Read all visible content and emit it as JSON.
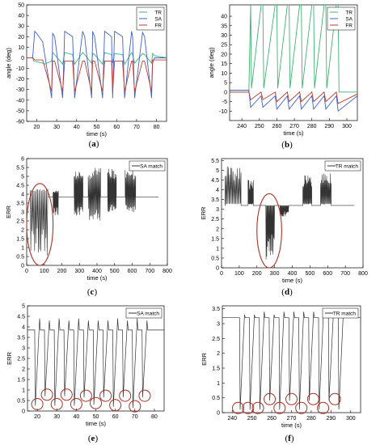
{
  "chart_data": [
    {
      "id": "a",
      "panel_label": "(a)",
      "type": "line",
      "xlabel": "time (s)",
      "ylabel": "angle (deg)",
      "xlim": [
        15,
        85
      ],
      "ylim": [
        -60,
        50
      ],
      "xticks": [
        20,
        30,
        40,
        50,
        60,
        70,
        80
      ],
      "yticks": [
        -60,
        -50,
        -40,
        -30,
        -20,
        -10,
        0,
        10,
        20,
        30,
        40,
        50
      ],
      "legend": "top-right",
      "grid": false,
      "legend_entries": [
        "TR",
        "SA",
        "FR"
      ],
      "series": [
        {
          "name": "TR",
          "color": "#3cb371",
          "x": [
            15,
            18,
            18.5,
            23,
            24,
            27.5,
            28,
            29,
            33,
            34,
            38,
            39,
            43,
            44,
            47.5,
            48,
            49,
            53,
            54,
            57.5,
            58,
            59,
            63,
            64,
            67.5,
            68,
            69,
            73,
            74,
            77.5,
            78,
            79,
            85
          ],
          "y": [
            0,
            0,
            -3,
            -5,
            -6,
            -3,
            5,
            3,
            -6,
            5,
            3,
            -6,
            5,
            3,
            -5,
            4,
            3,
            -6,
            5,
            3,
            -5,
            4,
            3,
            -6,
            5,
            3,
            -5,
            4,
            3,
            -5,
            4,
            2,
            0
          ]
        },
        {
          "name": "SA",
          "color": "#4060d0",
          "x": [
            15,
            18,
            19,
            20,
            23,
            27.5,
            28,
            29,
            33,
            34,
            38,
            39,
            43,
            44,
            47.5,
            48,
            49,
            53,
            54,
            57.5,
            58,
            59,
            63,
            64,
            67.5,
            68,
            69,
            73,
            74,
            77.5,
            78,
            79,
            85
          ],
          "y": [
            0,
            0,
            25,
            23,
            15,
            -38,
            23,
            20,
            -38,
            25,
            20,
            -38,
            25,
            20,
            -38,
            25,
            20,
            -38,
            25,
            20,
            -38,
            25,
            20,
            -38,
            25,
            20,
            -38,
            24,
            20,
            -38,
            -5,
            0,
            0
          ]
        },
        {
          "name": "FR",
          "color": "#c0392b",
          "x": [
            15,
            18,
            19,
            23,
            27.5,
            28,
            29,
            33,
            34,
            38,
            39,
            43,
            44,
            47.5,
            48,
            49,
            53,
            54,
            57.5,
            58,
            59,
            63,
            64,
            67.5,
            68,
            69,
            73,
            74,
            77.5,
            78,
            79,
            85
          ],
          "y": [
            0,
            0,
            -2,
            -2,
            -32,
            -3,
            -3,
            -32,
            -3,
            -3,
            -32,
            -3,
            -3,
            -32,
            -3,
            -3,
            -32,
            -3,
            -3,
            -32,
            -3,
            -3,
            -32,
            -3,
            -3,
            -32,
            -3,
            -3,
            -32,
            -2,
            -2,
            -2
          ]
        }
      ]
    },
    {
      "id": "b",
      "panel_label": "(b)",
      "type": "line",
      "xlabel": "time (s)",
      "ylabel": "angle (deg)",
      "xlim": [
        233,
        306
      ],
      "ylim": [
        -15,
        46
      ],
      "xticks": [
        240,
        250,
        260,
        270,
        280,
        290,
        300
      ],
      "yticks": [
        -10,
        -5,
        0,
        5,
        10,
        15,
        20,
        25,
        30,
        35,
        40
      ],
      "legend": "top-right",
      "grid": false,
      "legend_entries": [
        "TR",
        "SA",
        "FR"
      ],
      "series": [
        {
          "name": "TR",
          "color": "#3cb371",
          "x": [
            233,
            244,
            245,
            245.5,
            251,
            252,
            252.5,
            259,
            260,
            260.5,
            266,
            267,
            267.5,
            273,
            274,
            274.5,
            280,
            281,
            281.5,
            287,
            288,
            288.5,
            294,
            295,
            295.5,
            306
          ],
          "y": [
            0,
            0,
            46,
            2,
            46,
            46,
            2,
            46,
            46,
            2,
            46,
            46,
            2,
            46,
            46,
            2,
            46,
            46,
            2,
            46,
            46,
            2,
            46,
            46,
            0,
            0
          ]
        },
        {
          "name": "SA",
          "color": "#4060d0",
          "x": [
            233,
            244,
            245,
            251,
            252,
            259,
            260,
            266,
            267,
            273,
            274,
            280,
            281,
            287,
            288,
            294,
            295,
            306
          ],
          "y": [
            1,
            1,
            -8,
            -2,
            -8,
            -2,
            -9,
            -2,
            -9,
            -2,
            -9,
            -2,
            -9,
            -2,
            -9,
            -2,
            -10,
            -2
          ]
        },
        {
          "name": "FR",
          "color": "#c0392b",
          "x": [
            233,
            244,
            245,
            251,
            252,
            259,
            260,
            266,
            267,
            273,
            274,
            280,
            281,
            287,
            288,
            294,
            295,
            306
          ],
          "y": [
            0,
            0,
            -4,
            0,
            -4,
            0,
            -5,
            0,
            -5,
            0,
            -5,
            0,
            -5,
            0,
            -5,
            0,
            -6,
            -1
          ]
        }
      ]
    },
    {
      "id": "c",
      "panel_label": "(c)",
      "type": "line",
      "xlabel": "time (s)",
      "ylabel": "ERR",
      "xlim": [
        0,
        800
      ],
      "ylim": [
        0,
        6
      ],
      "xticks": [
        0,
        100,
        200,
        300,
        400,
        500,
        600,
        700,
        800
      ],
      "yticks": [
        0,
        0.5,
        1,
        1.5,
        2,
        2.5,
        3,
        3.5,
        4,
        4.5,
        5,
        5.5,
        6
      ],
      "legend": "top-right",
      "grid": false,
      "legend_entries": [
        "SA match"
      ],
      "baseline": 3.85,
      "bursts": [
        {
          "from": 20,
          "to": 120,
          "low": 0.4,
          "high": 4.3
        },
        {
          "from": 150,
          "to": 180,
          "low": 2.8,
          "high": 4.2
        },
        {
          "from": 270,
          "to": 320,
          "low": 2.8,
          "high": 5.3
        },
        {
          "from": 350,
          "to": 420,
          "low": 2.5,
          "high": 5.5
        },
        {
          "from": 460,
          "to": 510,
          "low": 3.0,
          "high": 5.5
        },
        {
          "from": 560,
          "to": 620,
          "low": 3.0,
          "high": 5.4
        }
      ],
      "annotation": {
        "type": "ellipse",
        "x": [
          0,
          150
        ],
        "y": [
          0,
          4.6
        ]
      },
      "series": [
        {
          "name": "SA match",
          "color": "#333333"
        }
      ]
    },
    {
      "id": "d",
      "panel_label": "(d)",
      "type": "line",
      "xlabel": "time (s)",
      "ylabel": "ERR",
      "xlim": [
        0,
        800
      ],
      "ylim": [
        0,
        5.6
      ],
      "xticks": [
        0,
        100,
        200,
        300,
        400,
        500,
        600,
        700,
        800
      ],
      "yticks": [
        0,
        0.5,
        1,
        1.5,
        2,
        2.5,
        3,
        3.5,
        4,
        4.5,
        5,
        5.5
      ],
      "legend": "top-right",
      "grid": false,
      "legend_entries": [
        "TR match"
      ],
      "baseline": 3.2,
      "bursts": [
        {
          "from": 20,
          "to": 110,
          "low": 3.3,
          "high": 5.2
        },
        {
          "from": 150,
          "to": 180,
          "low": 3.3,
          "high": 4.5
        },
        {
          "from": 250,
          "to": 300,
          "low": 0.4,
          "high": 3.2
        },
        {
          "from": 330,
          "to": 380,
          "low": 2.6,
          "high": 3.2
        },
        {
          "from": 460,
          "to": 510,
          "low": 3.3,
          "high": 4.8
        },
        {
          "from": 560,
          "to": 620,
          "low": 3.3,
          "high": 4.9
        }
      ],
      "annotation": {
        "type": "ellipse",
        "x": [
          200,
          340
        ],
        "y": [
          0,
          3.8
        ]
      },
      "series": [
        {
          "name": "TR match",
          "color": "#333333"
        }
      ]
    },
    {
      "id": "e",
      "panel_label": "(e)",
      "type": "line",
      "xlabel": "time (s)",
      "ylabel": "ERR",
      "xlim": [
        15,
        85
      ],
      "ylim": [
        0,
        5
      ],
      "xticks": [
        20,
        30,
        40,
        50,
        60,
        70,
        80
      ],
      "yticks": [
        0,
        0.5,
        1,
        1.5,
        2,
        2.5,
        3,
        3.5,
        4,
        4.5,
        5
      ],
      "legend": "top-right",
      "grid": false,
      "legend_entries": [
        "SA match"
      ],
      "baseline": 3.85,
      "dips": [
        {
          "x": 19,
          "min": 0.25,
          "peak": 4.4
        },
        {
          "x": 24,
          "min": 0.7,
          "peak": 4.3
        },
        {
          "x": 29,
          "min": 0.25,
          "peak": 4.4
        },
        {
          "x": 34,
          "min": 0.7,
          "peak": 4.3
        },
        {
          "x": 39,
          "min": 0.25,
          "peak": 4.4
        },
        {
          "x": 44,
          "min": 0.65,
          "peak": 4.3
        },
        {
          "x": 49,
          "min": 0.3,
          "peak": 4.3
        },
        {
          "x": 54,
          "min": 0.65,
          "peak": 4.3
        },
        {
          "x": 59,
          "min": 0.2,
          "peak": 4.4
        },
        {
          "x": 64,
          "min": 0.65,
          "peak": 4.3
        },
        {
          "x": 69,
          "min": 0.15,
          "peak": 4.4
        },
        {
          "x": 74,
          "min": 0.65,
          "peak": 4.3
        }
      ],
      "circles_at": [
        20,
        25,
        30,
        35,
        40,
        45,
        50,
        55,
        60,
        65,
        70,
        75
      ],
      "series": [
        {
          "name": "SA match",
          "color": "#333333"
        }
      ]
    },
    {
      "id": "f",
      "panel_label": "(f)",
      "type": "line",
      "xlabel": "time (s)",
      "ylabel": "ERR",
      "xlim": [
        235,
        305
      ],
      "ylim": [
        0,
        3.6
      ],
      "xticks": [
        240,
        250,
        260,
        270,
        280,
        290,
        300
      ],
      "yticks": [
        0,
        0.5,
        1,
        1.5,
        2,
        2.5,
        3,
        3.5
      ],
      "legend": "top-right",
      "grid": false,
      "legend_entries": [
        "TR match"
      ],
      "baseline": 3.2,
      "dips": [
        {
          "x": 244,
          "min": 0.1,
          "peak": 3.3
        },
        {
          "x": 249,
          "min": 0.1,
          "peak": 3.3
        },
        {
          "x": 254,
          "min": 0.1,
          "peak": 3.4
        },
        {
          "x": 259,
          "min": 0.4,
          "peak": 3.3
        },
        {
          "x": 264,
          "min": 0.1,
          "peak": 3.4
        },
        {
          "x": 269,
          "min": 0.4,
          "peak": 3.4
        },
        {
          "x": 274,
          "min": 0.1,
          "peak": 3.4
        },
        {
          "x": 279,
          "min": 0.4,
          "peak": 3.4
        },
        {
          "x": 284,
          "min": 0.1,
          "peak": 3.4
        },
        {
          "x": 289,
          "min": 0.4,
          "peak": 3.3
        },
        {
          "x": 294,
          "min": 0.1,
          "peak": 3.3
        }
      ],
      "circles_at": [
        243,
        248,
        253,
        259,
        264,
        270,
        275,
        281,
        286,
        292
      ],
      "series": [
        {
          "name": "TR match",
          "color": "#333333"
        }
      ]
    }
  ]
}
